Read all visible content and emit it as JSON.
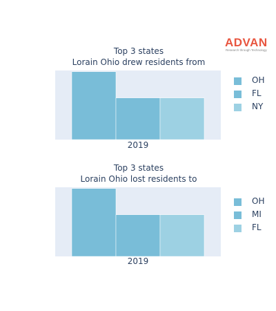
{
  "logo": {
    "word": "ADVAN",
    "tagline": "Research through Technology",
    "color": "#e8553f"
  },
  "colors": {
    "plot_bg": "#e5ecf6",
    "series": [
      "#79bdd8",
      "#79bdd8",
      "#9dd1e3"
    ]
  },
  "chart_data": [
    {
      "type": "bar",
      "title_lines": [
        "Top 3 states",
        "Lorain Ohio drew residents from"
      ],
      "categories": [
        "2019"
      ],
      "series": [
        {
          "name": "OH",
          "values": [
            57
          ]
        },
        {
          "name": "FL",
          "values": [
            35
          ]
        },
        {
          "name": "NY",
          "values": [
            35
          ]
        }
      ],
      "ylim": [
        0,
        58
      ],
      "grid": false,
      "legend_position": "right"
    },
    {
      "type": "bar",
      "title_lines": [
        "Top 3 states",
        "Lorain Ohio lost residents to"
      ],
      "categories": [
        "2019"
      ],
      "series": [
        {
          "name": "OH",
          "values": [
            57
          ]
        },
        {
          "name": "MI",
          "values": [
            35
          ]
        },
        {
          "name": "FL",
          "values": [
            35
          ]
        }
      ],
      "ylim": [
        0,
        58
      ],
      "grid": false,
      "legend_position": "right"
    }
  ]
}
